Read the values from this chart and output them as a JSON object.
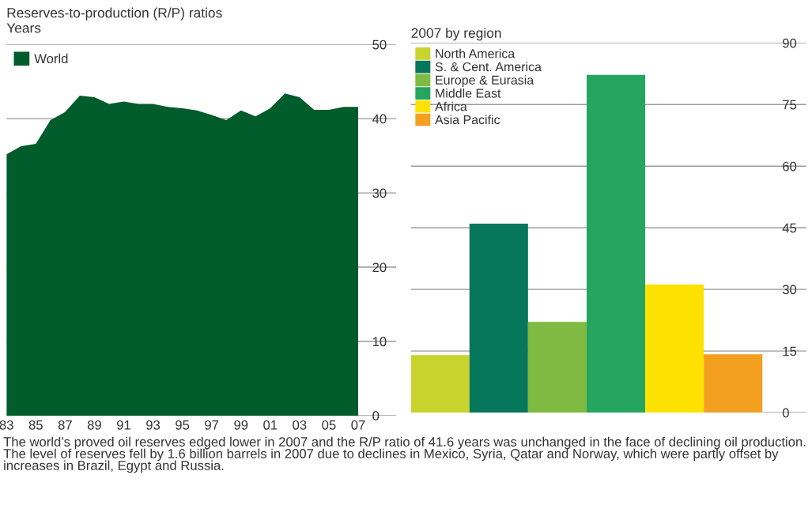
{
  "chart_data": [
    {
      "type": "area",
      "title": "Reserves-to-production (R/P) ratios",
      "ylabel": "Years",
      "x": [
        1983,
        1984,
        1985,
        1986,
        1987,
        1988,
        1989,
        1990,
        1991,
        1992,
        1993,
        1994,
        1995,
        1996,
        1997,
        1998,
        1999,
        2000,
        2001,
        2002,
        2003,
        2004,
        2005,
        2006,
        2007
      ],
      "series": [
        {
          "name": "World",
          "color": "#005c2a",
          "values": [
            35.2,
            36.3,
            36.6,
            39.8,
            40.9,
            43.1,
            42.9,
            42.0,
            42.3,
            42.0,
            42.0,
            41.6,
            41.4,
            41.1,
            40.5,
            39.8,
            41.1,
            40.3,
            41.4,
            43.4,
            42.9,
            41.2,
            41.2,
            41.6,
            41.6
          ]
        }
      ],
      "xticks": [
        {
          "value": 1983,
          "label": "83"
        },
        {
          "value": 1985,
          "label": "85"
        },
        {
          "value": 1987,
          "label": "87"
        },
        {
          "value": 1989,
          "label": "89"
        },
        {
          "value": 1991,
          "label": "91"
        },
        {
          "value": 1993,
          "label": "93"
        },
        {
          "value": 1995,
          "label": "95"
        },
        {
          "value": 1997,
          "label": "97"
        },
        {
          "value": 1999,
          "label": "99"
        },
        {
          "value": 2001,
          "label": "01"
        },
        {
          "value": 2003,
          "label": "03"
        },
        {
          "value": 2005,
          "label": "05"
        },
        {
          "value": 2007,
          "label": "07"
        }
      ],
      "xlim": [
        1983,
        2009.6
      ],
      "ylim": [
        0,
        50
      ],
      "yticks": [
        0,
        10,
        20,
        30,
        40,
        50
      ],
      "grid": "y",
      "legend": "top left",
      "annotations": [
        "The world’s proved oil reserves edged lower in 2007 and the R/P ratio of 41.6 years was unchanged in the face of declining oil production. The level of reserves fell by 1.6 billion barrels in 2007 due to declines in Mexico, Syria, Qatar and Norway, which were partly offset by increases in Brazil, Egypt and Russia."
      ]
    },
    {
      "type": "bar",
      "title": "2007 by region",
      "categories": [
        null,
        null,
        null,
        null,
        null,
        null
      ],
      "stacked": true,
      "series": [
        {
          "name": "North America",
          "color": "#c9d32e",
          "values": [
            14.0,
            null,
            null,
            null,
            null,
            null
          ]
        },
        {
          "name": "S. & Cent. America",
          "color": "#06775a",
          "values": [
            null,
            46.0,
            null,
            null,
            null,
            null
          ]
        },
        {
          "name": "Europe & Eurasia",
          "color": "#7fba42",
          "values": [
            null,
            null,
            22.1,
            null,
            null,
            null
          ]
        },
        {
          "name": "Middle East",
          "color": "#25a55f",
          "values": [
            null,
            null,
            null,
            82.2,
            null,
            null
          ]
        },
        {
          "name": "Africa",
          "color": "#fde100",
          "values": [
            null,
            null,
            null,
            null,
            31.2,
            null
          ]
        },
        {
          "name": "Asia Pacific",
          "color": "#f3a021",
          "values": [
            null,
            null,
            null,
            null,
            null,
            14.2
          ]
        }
      ],
      "ylim": [
        0,
        90
      ],
      "yticks": [
        0,
        15,
        30,
        45,
        60,
        75,
        90
      ],
      "grid": "y",
      "legend": "top left",
      "tick_labels": "y"
    }
  ]
}
